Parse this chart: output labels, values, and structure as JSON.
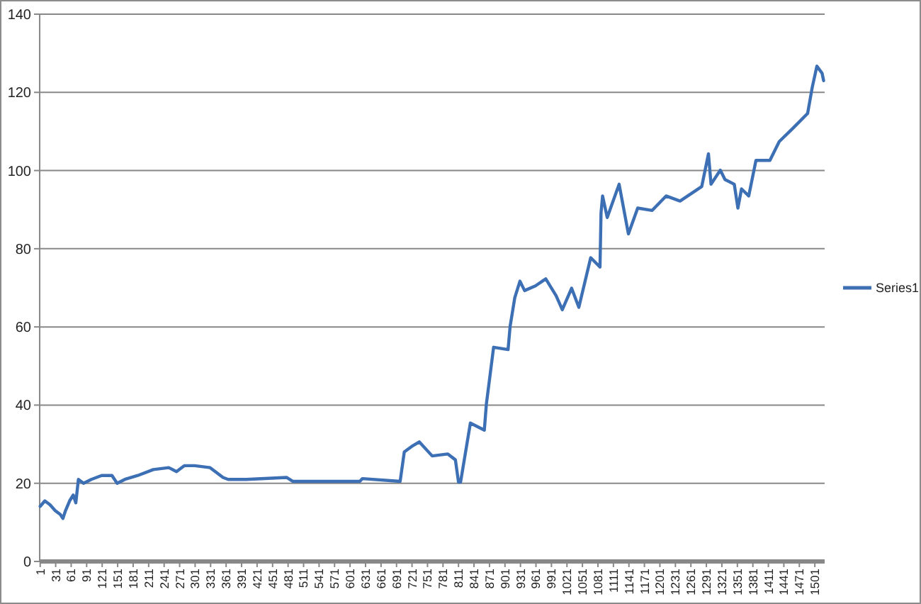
{
  "chart_data": {
    "type": "line",
    "x": [
      1,
      10,
      20,
      30,
      40,
      45,
      50,
      58,
      65,
      70,
      75,
      85,
      100,
      110,
      120,
      140,
      150,
      165,
      190,
      220,
      250,
      265,
      280,
      300,
      330,
      345,
      355,
      365,
      400,
      478,
      490,
      560,
      620,
      625,
      698,
      706,
      720,
      735,
      760,
      790,
      805,
      811,
      815,
      834,
      861,
      865,
      879,
      907,
      911,
      920,
      930,
      939,
      960,
      980,
      1000,
      1012,
      1030,
      1044,
      1067,
      1085,
      1087,
      1090,
      1099,
      1122,
      1140,
      1158,
      1186,
      1213,
      1240,
      1282,
      1295,
      1300,
      1318,
      1327,
      1345,
      1352,
      1359,
      1373,
      1387,
      1414,
      1432,
      1460,
      1487,
      1496,
      1505,
      1515,
      1518
    ],
    "series": [
      {
        "name": "Series1",
        "color": "#3c6fb4",
        "values": [
          14.1,
          15.5,
          14.5,
          13,
          12,
          11,
          13,
          15.5,
          17,
          15,
          21,
          20,
          21,
          21.5,
          22,
          22,
          20,
          21,
          22,
          23.5,
          24,
          23,
          24.5,
          24.5,
          24,
          22.5,
          21.5,
          21,
          21,
          21.5,
          20.5,
          20.5,
          20.5,
          21.2,
          20.5,
          28,
          29.4,
          30.6,
          27,
          27.5,
          26,
          20.3,
          20.3,
          35.4,
          33.6,
          40.3,
          54.8,
          54.2,
          60.2,
          67.5,
          71.7,
          69.3,
          70.5,
          72.3,
          68,
          64.4,
          69.9,
          65,
          77.7,
          75.3,
          89.2,
          93.5,
          88,
          96.5,
          83.8,
          90.4,
          89.8,
          93.5,
          92.2,
          95.9,
          104.3,
          96.5,
          100.1,
          97.7,
          96.5,
          90.4,
          95.3,
          93.5,
          102.6,
          102.6,
          107.4,
          111,
          114.6,
          121.3,
          126.7,
          124.9,
          123
        ]
      }
    ],
    "xlim": [
      0,
      1520
    ],
    "xticks": [
      1,
      31,
      61,
      91,
      121,
      151,
      181,
      211,
      241,
      271,
      301,
      331,
      361,
      391,
      421,
      451,
      481,
      511,
      541,
      571,
      601,
      631,
      661,
      691,
      721,
      751,
      781,
      811,
      841,
      871,
      901,
      931,
      961,
      991,
      1021,
      1051,
      1081,
      1111,
      1141,
      1171,
      1201,
      1231,
      1261,
      1291,
      1321,
      1351,
      1381,
      1411,
      1441,
      1471,
      1501
    ],
    "ylim": [
      0,
      140
    ],
    "yticks": [
      0,
      20,
      40,
      60,
      80,
      100,
      120,
      140
    ],
    "grid": "y",
    "legend": "right",
    "marker": "none",
    "line_style": "solid"
  }
}
